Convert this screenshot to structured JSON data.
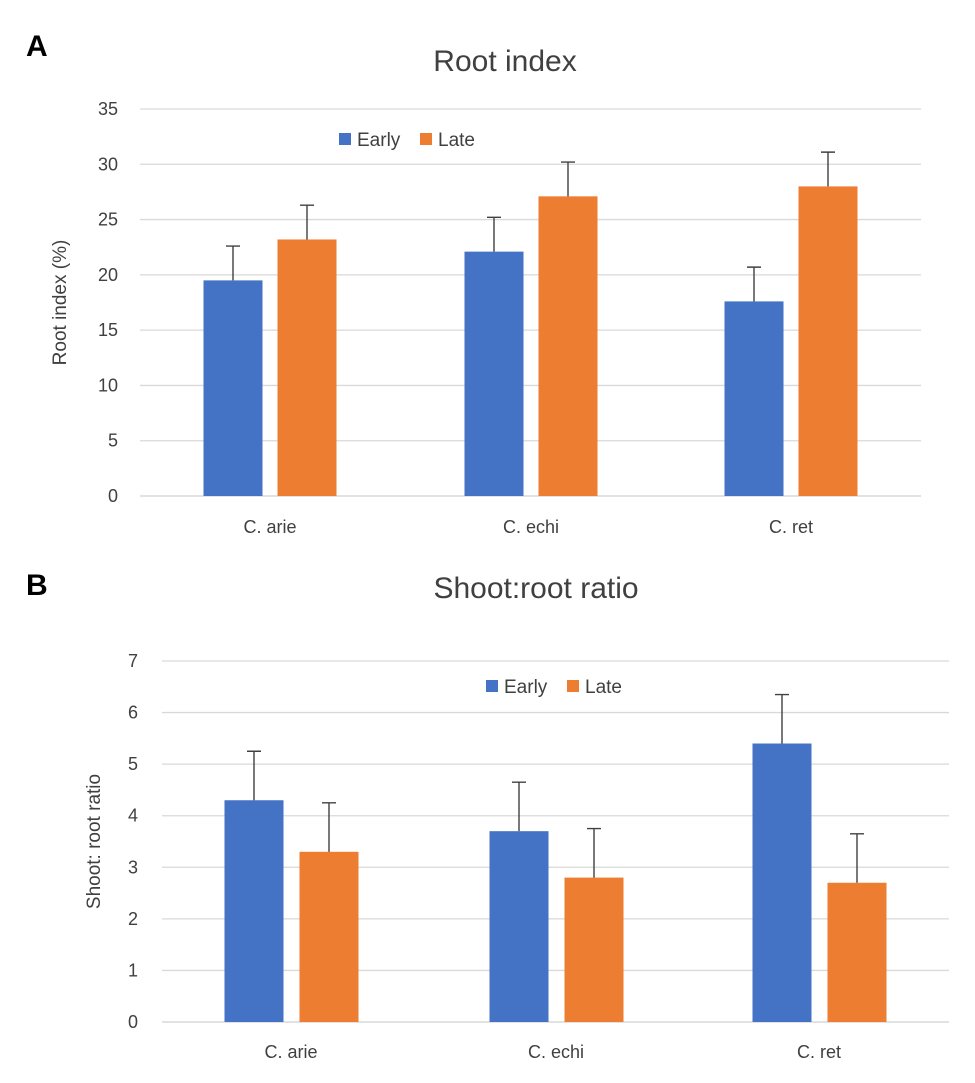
{
  "chart_data": [
    {
      "panel": "A",
      "type": "bar",
      "title": "Root index",
      "ylabel": "Root index (%)",
      "xlabel": "",
      "ylim": [
        0,
        35
      ],
      "yticks": [
        0,
        5,
        10,
        15,
        20,
        25,
        30,
        35
      ],
      "grid": true,
      "legend": "top-center",
      "categories": [
        "C. arie",
        "C. echi",
        "C. ret"
      ],
      "series": [
        {
          "name": "Early",
          "color": "#4472c4",
          "values": [
            19.5,
            22.1,
            17.6
          ],
          "errors": [
            3.1,
            3.1,
            3.1
          ]
        },
        {
          "name": "Late",
          "color": "#ed7d31",
          "values": [
            23.2,
            27.1,
            28.0
          ],
          "errors": [
            3.1,
            3.1,
            3.1
          ]
        }
      ]
    },
    {
      "panel": "B",
      "type": "bar",
      "title": "Shoot:root ratio",
      "ylabel": "Shoot: root ratio",
      "xlabel": "",
      "ylim": [
        0,
        7
      ],
      "yticks": [
        0,
        1,
        2,
        3,
        4,
        5,
        6,
        7
      ],
      "grid": true,
      "legend": "top-center",
      "categories": [
        "C. arie",
        "C. echi",
        "C. ret"
      ],
      "series": [
        {
          "name": "Early",
          "color": "#4472c4",
          "values": [
            4.3,
            3.7,
            5.4
          ],
          "errors": [
            0.95,
            0.95,
            0.95
          ]
        },
        {
          "name": "Late",
          "color": "#ed7d31",
          "values": [
            3.3,
            2.8,
            2.7
          ],
          "errors": [
            0.95,
            0.95,
            0.95
          ]
        }
      ]
    }
  ]
}
